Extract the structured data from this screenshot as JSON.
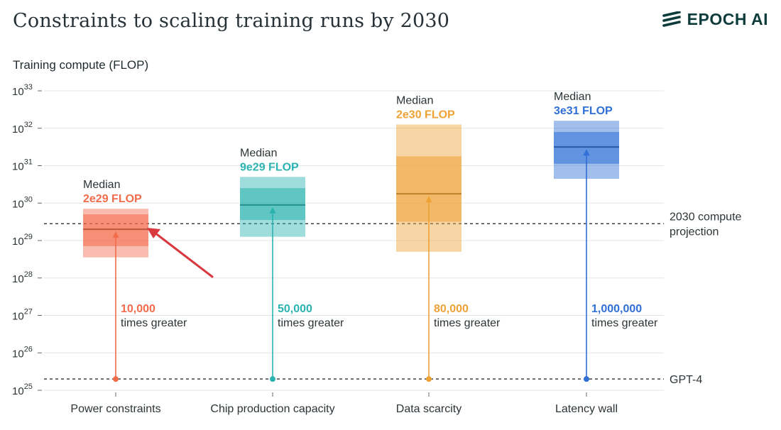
{
  "header": {
    "title": "Constraints to scaling training runs by 2030",
    "brand": "EPOCH AI",
    "brand_icon": "epoch-logo-icon"
  },
  "colors": {
    "power": "#f26b4b",
    "chip": "#2bb3b1",
    "data": "#eea236",
    "latency": "#2f6fd6",
    "annotation_arrow": "#d9383f"
  },
  "chart_data": {
    "type": "box",
    "ylabel": "Training compute (FLOP)",
    "yscale": "log",
    "ylim_exponent": [
      25,
      33
    ],
    "ytick_exponents": [
      25,
      26,
      27,
      28,
      29,
      30,
      31,
      32,
      33
    ],
    "ytick_base": "10",
    "categories": [
      "Power constraints",
      "Chip production capacity",
      "Data scarcity",
      "Latency wall"
    ],
    "reference_lines": [
      {
        "key": "projection",
        "label_lines": [
          "2030 compute",
          "projection"
        ],
        "value_exponent": 29.45
      },
      {
        "key": "gpt4",
        "label_lines": [
          "GPT-4"
        ],
        "value_exponent": 25.3
      }
    ],
    "series": [
      {
        "category": "Power constraints",
        "color_key": "power",
        "outer_exponent": [
          28.55,
          29.85
        ],
        "inner_exponent": [
          28.85,
          29.7
        ],
        "median_exponent": 29.3,
        "median_caption": "Median",
        "median_label": "2e29 FLOP",
        "multiplier": "10,000",
        "multiplier_caption": "times greater"
      },
      {
        "category": "Chip production capacity",
        "color_key": "chip",
        "outer_exponent": [
          29.1,
          30.7
        ],
        "inner_exponent": [
          29.55,
          30.4
        ],
        "median_exponent": 29.95,
        "median_caption": "Median",
        "median_label": "9e29 FLOP",
        "multiplier": "50,000",
        "multiplier_caption": "times greater"
      },
      {
        "category": "Data scarcity",
        "color_key": "data",
        "outer_exponent": [
          28.7,
          32.1
        ],
        "inner_exponent": [
          29.5,
          31.25
        ],
        "median_exponent": 30.25,
        "median_caption": "Median",
        "median_label": "2e30 FLOP",
        "multiplier": "80,000",
        "multiplier_caption": "times greater"
      },
      {
        "category": "Latency wall",
        "color_key": "latency",
        "outer_exponent": [
          30.65,
          32.2
        ],
        "inner_exponent": [
          31.05,
          31.9
        ],
        "median_exponent": 31.5,
        "median_caption": "Median",
        "median_label": "3e31 FLOP",
        "multiplier": "1,000,000",
        "multiplier_caption": "times greater"
      }
    ]
  }
}
